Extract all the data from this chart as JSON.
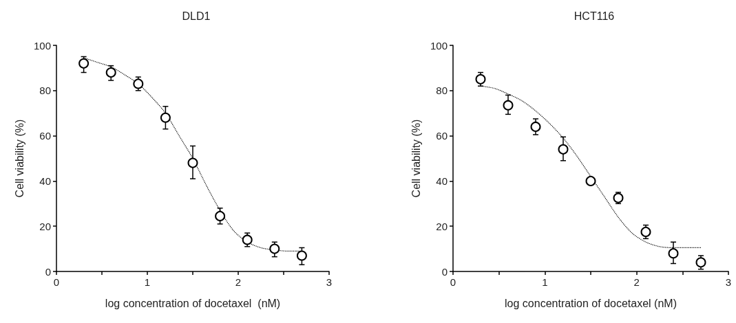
{
  "chart_data": [
    {
      "type": "scatter",
      "title": "DLD1",
      "xlabel": "log concentration of docetaxel  (nM)",
      "ylabel": "Cell viability (%)",
      "xlim": [
        0,
        3
      ],
      "xticks": [
        0,
        {
          "value": 0.5,
          "label": null
        },
        1,
        {
          "value": 1.5,
          "label": null
        },
        2,
        {
          "value": 2.5,
          "label": null
        },
        3
      ],
      "ylim": [
        0,
        100
      ],
      "yticks": [
        0,
        20,
        40,
        60,
        80,
        100
      ],
      "grid": false,
      "series": [
        {
          "color": "#000000",
          "marker": "circle",
          "x": [
            0.3,
            0.6,
            0.9,
            1.2,
            1.5,
            1.8,
            2.1,
            2.4,
            2.7
          ],
          "values": [
            92,
            88,
            83,
            68,
            48,
            24.5,
            14,
            10,
            7
          ],
          "errors": [
            [
              88,
              95
            ],
            [
              84.5,
              91
            ],
            [
              80,
              86
            ],
            [
              63,
              73
            ],
            [
              41,
              55.5
            ],
            [
              21,
              28
            ],
            [
              11,
              17
            ],
            [
              6.5,
              13
            ],
            [
              3,
              10.5
            ]
          ]
        },
        {
          "type": "line",
          "color": "#000000",
          "marker": "none",
          "line_style": "dotted",
          "x": [
            0.3,
            0.45,
            0.6,
            0.75,
            0.9,
            1.05,
            1.2,
            1.35,
            1.5,
            1.65,
            1.8,
            1.95,
            2.1,
            2.25,
            2.4,
            2.55,
            2.7
          ],
          "values": [
            94.5,
            92.5,
            90.5,
            87,
            83,
            77,
            70,
            60,
            50,
            38,
            27,
            18,
            13,
            10.5,
            9.5,
            9,
            9
          ]
        }
      ]
    },
    {
      "type": "scatter",
      "title": "HCT116",
      "xlabel": "log concentration of docetaxel (nM)",
      "ylabel": "Cell viability (%)",
      "xlim": [
        0,
        3
      ],
      "xticks": [
        0,
        {
          "value": 0.5,
          "label": null
        },
        1,
        {
          "value": 1.5,
          "label": null
        },
        2,
        {
          "value": 2.5,
          "label": null
        },
        3
      ],
      "ylim": [
        0,
        100
      ],
      "yticks": [
        0,
        20,
        40,
        60,
        80,
        100
      ],
      "grid": false,
      "series": [
        {
          "color": "#000000",
          "marker": "circle",
          "x": [
            0.3,
            0.6,
            0.9,
            1.2,
            1.5,
            1.8,
            2.1,
            2.4,
            2.7
          ],
          "values": [
            85,
            73.5,
            64,
            54,
            40,
            32.5,
            17.5,
            8,
            4
          ],
          "errors": [
            [
              82,
              88
            ],
            [
              69.5,
              78
            ],
            [
              60.5,
              67.5
            ],
            [
              49,
              59.5
            ],
            null,
            [
              30,
              35
            ],
            [
              14.5,
              20.5
            ],
            [
              3.5,
              13
            ],
            [
              1,
              7
            ]
          ]
        },
        {
          "type": "line",
          "color": "#000000",
          "marker": "none",
          "line_style": "dotted",
          "x": [
            0.3,
            0.45,
            0.6,
            0.75,
            0.9,
            1.05,
            1.2,
            1.35,
            1.5,
            1.65,
            1.8,
            1.95,
            2.1,
            2.25,
            2.4,
            2.55,
            2.7
          ],
          "values": [
            82,
            81,
            78.5,
            75.5,
            71,
            65.5,
            59,
            51,
            42,
            33,
            24,
            17,
            13,
            11,
            10.5,
            10.5,
            10.5
          ]
        }
      ]
    }
  ]
}
